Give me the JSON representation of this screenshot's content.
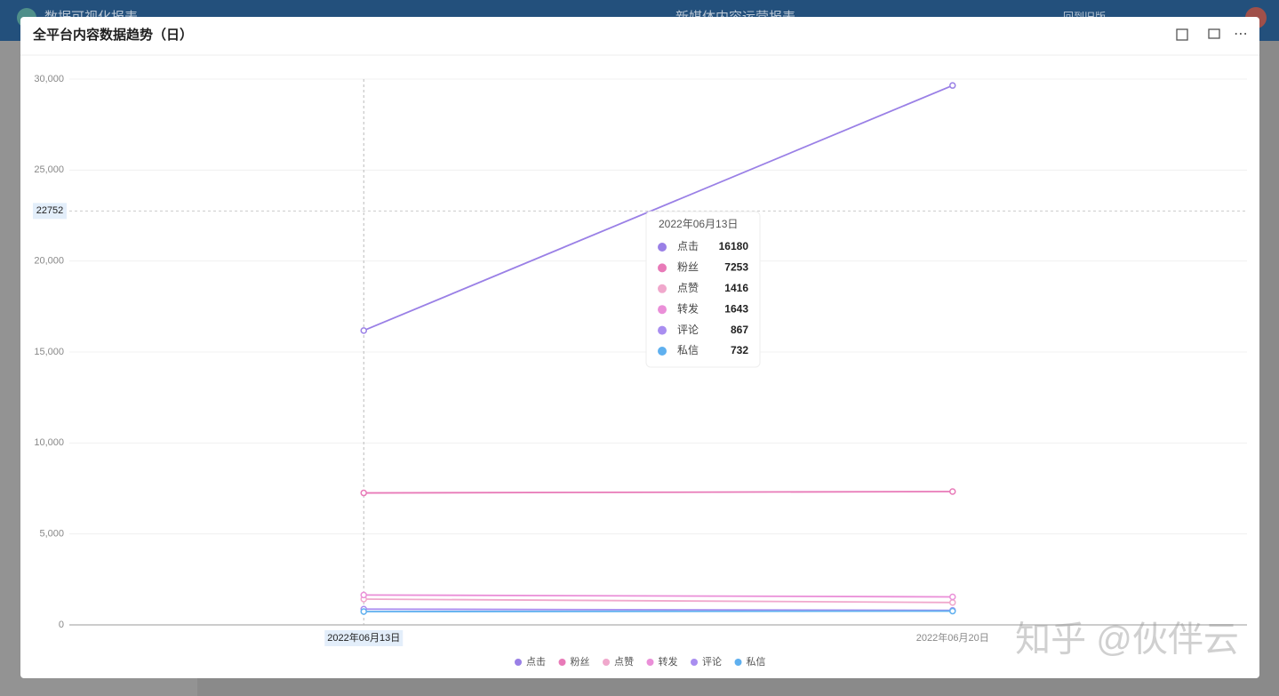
{
  "header": {
    "app_title": "数据可视化报表",
    "report_title": "新媒体内容运营报表",
    "back_link": "回到旧版"
  },
  "watermark": "知乎 @伙伴云",
  "chart_data": {
    "type": "line",
    "title": "全平台内容数据趋势（日）",
    "categories": [
      "2022年06月13日",
      "2022年06月20日"
    ],
    "series": [
      {
        "name": "点击",
        "color": "#9a80e6",
        "values": [
          16180,
          29650
        ]
      },
      {
        "name": "粉丝",
        "color": "#e87ab8",
        "values": [
          7253,
          7330
        ]
      },
      {
        "name": "点赞",
        "color": "#f0a8cc",
        "values": [
          1416,
          1230
        ]
      },
      {
        "name": "转发",
        "color": "#ea8fd8",
        "values": [
          1643,
          1540
        ]
      },
      {
        "name": "评论",
        "color": "#a98ef0",
        "values": [
          867,
          800
        ]
      },
      {
        "name": "私信",
        "color": "#5fb0ef",
        "values": [
          732,
          760
        ]
      }
    ],
    "ylim": [
      0,
      30000
    ],
    "yticks": [
      0,
      {
        "value": 5000,
        "label": "5,000"
      },
      {
        "value": 10000,
        "label": "10,000"
      },
      {
        "value": 15000,
        "label": "15,000"
      },
      {
        "value": 20000,
        "label": "20,000"
      },
      {
        "value": 25000,
        "label": "25,000"
      },
      {
        "value": 30000,
        "label": "30,000"
      }
    ],
    "grid": true,
    "crosshair_y": 22752
  }
}
